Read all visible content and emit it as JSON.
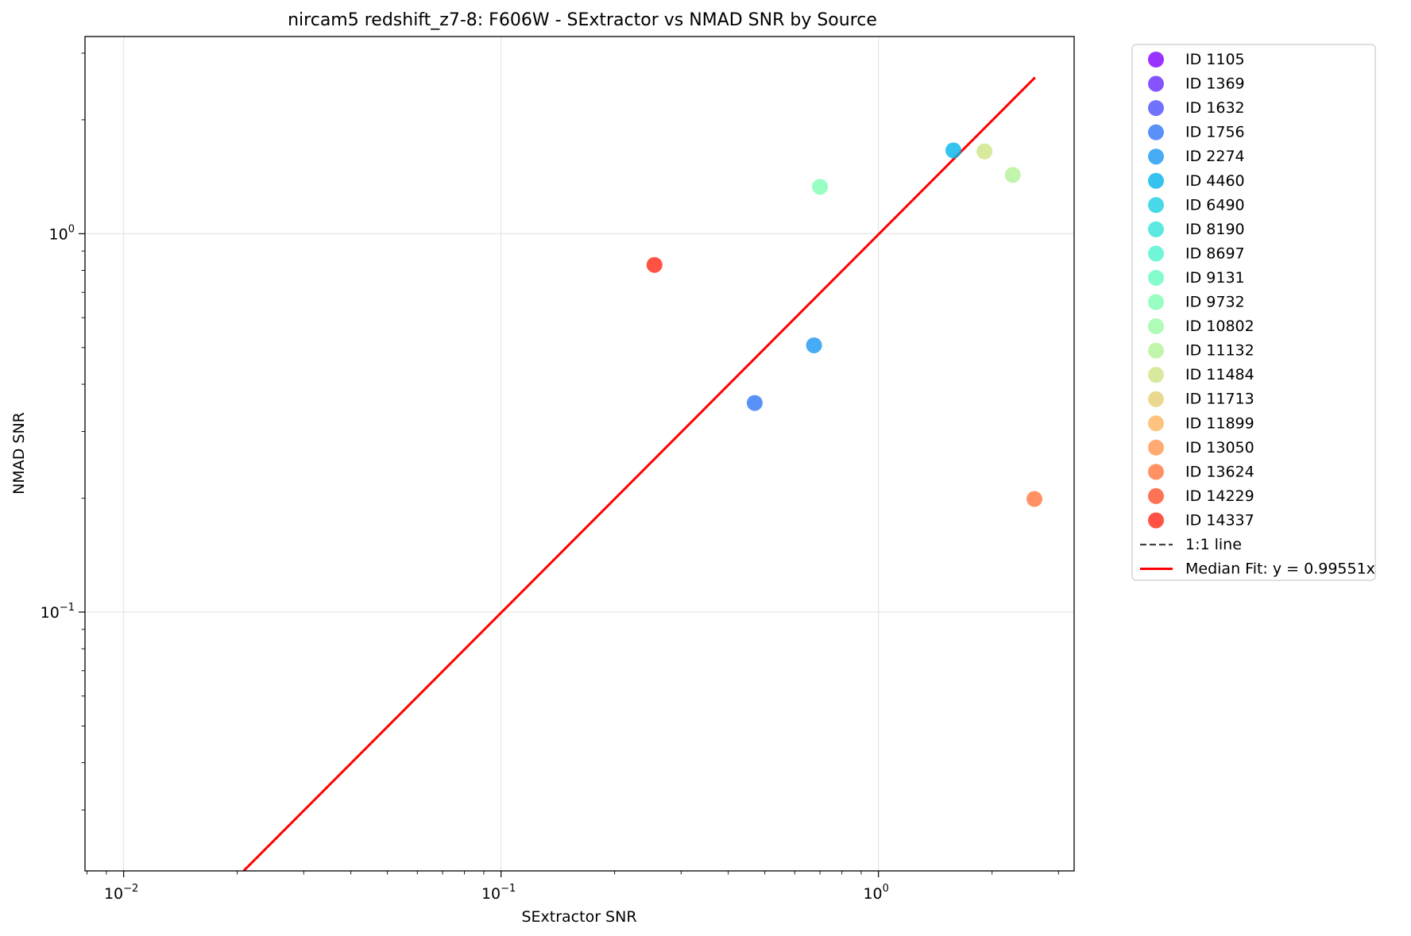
{
  "chart_data": {
    "type": "scatter",
    "title": "nircam5 redshift_z7-8: F606W - SExtractor vs NMAD SNR by Source",
    "xlabel": "SExtractor SNR",
    "ylabel": "NMAD SNR",
    "xscale": "log",
    "yscale": "log",
    "xlim": [
      0.0079,
      3.3
    ],
    "ylim": [
      0.0207,
      3.32
    ],
    "grid": true,
    "legend_position": "outside-right",
    "x_ticks": [
      {
        "value": 0.01,
        "base": "10",
        "exp": "−2"
      },
      {
        "value": 0.1,
        "base": "10",
        "exp": "−1"
      },
      {
        "value": 1,
        "base": "10",
        "exp": "0"
      }
    ],
    "y_ticks": [
      {
        "value": 0.1,
        "base": "10",
        "exp": "−1"
      },
      {
        "value": 1,
        "base": "10",
        "exp": "0"
      }
    ],
    "series": [
      {
        "name": "ID 1105",
        "color": "#8000ff",
        "points": []
      },
      {
        "name": "ID 1369",
        "color": "#6629fe",
        "points": []
      },
      {
        "name": "ID 1632",
        "color": "#4c50fc",
        "points": []
      },
      {
        "name": "ID 1756",
        "color": "#3176f8",
        "points": [
          {
            "x": 0.47,
            "y": 0.357
          }
        ]
      },
      {
        "name": "ID 2274",
        "color": "#1996f3",
        "points": [
          {
            "x": 0.675,
            "y": 0.507
          }
        ]
      },
      {
        "name": "ID 4460",
        "color": "#01b4eb",
        "points": [
          {
            "x": 1.58,
            "y": 1.66
          }
        ]
      },
      {
        "name": "ID 6490",
        "color": "#1acee3",
        "points": []
      },
      {
        "name": "ID 8190",
        "color": "#33e3d9",
        "points": []
      },
      {
        "name": "ID 8697",
        "color": "#4df3ce",
        "points": []
      },
      {
        "name": "ID 9131",
        "color": "#66fbc1",
        "points": []
      },
      {
        "name": "ID 9732",
        "color": "#80feb3",
        "points": [
          {
            "x": 0.7,
            "y": 1.33
          }
        ]
      },
      {
        "name": "ID 10802",
        "color": "#9afba4",
        "points": []
      },
      {
        "name": "ID 11132",
        "color": "#b3f396",
        "points": [
          {
            "x": 2.27,
            "y": 1.43
          }
        ]
      },
      {
        "name": "ID 11484",
        "color": "#cde385",
        "points": [
          {
            "x": 1.91,
            "y": 1.65
          }
        ]
      },
      {
        "name": "ID 11713",
        "color": "#e6ce74",
        "points": []
      },
      {
        "name": "ID 11899",
        "color": "#ffb462",
        "points": []
      },
      {
        "name": "ID 13050",
        "color": "#ff9650",
        "points": []
      },
      {
        "name": "ID 13624",
        "color": "#ff763e",
        "points": [
          {
            "x": 2.59,
            "y": 0.199
          }
        ]
      },
      {
        "name": "ID 14229",
        "color": "#ff502a",
        "points": []
      },
      {
        "name": "ID 14337",
        "color": "#ff2715",
        "points": [
          {
            "x": 0.255,
            "y": 0.827
          }
        ]
      }
    ],
    "reference_lines": [
      {
        "name": "1:1 line",
        "style": "dashed",
        "color": "#444444",
        "slope": 1.0
      },
      {
        "name": "Median Fit: y = 0.99551x",
        "style": "solid",
        "color": "#ff0000",
        "slope": 0.99551,
        "x_range": [
          0.0205,
          2.6
        ]
      }
    ]
  }
}
